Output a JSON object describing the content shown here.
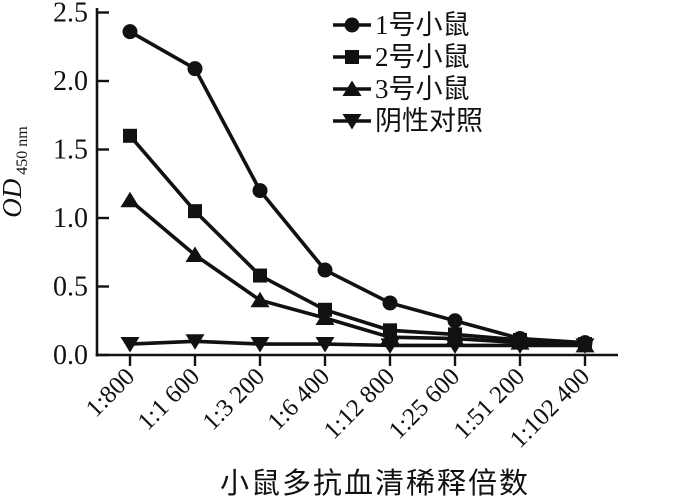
{
  "figure": {
    "background": "#ffffff",
    "line_color": "#111111"
  },
  "chart_data": {
    "type": "line",
    "title": "",
    "xlabel": "小鼠多抗血清稀释倍数",
    "ylabel": "OD",
    "ylabel_sub": "450 nm",
    "categories": [
      "1:800",
      "1:1 600",
      "1:3 200",
      "1:6 400",
      "1:12 800",
      "1:25 600",
      "1:51 200",
      "1:102 400"
    ],
    "series": [
      {
        "name": "1号小鼠",
        "marker": "circle",
        "values": [
          2.36,
          2.09,
          1.2,
          0.62,
          0.38,
          0.25,
          0.12,
          0.09
        ]
      },
      {
        "name": "2号小鼠",
        "marker": "square",
        "values": [
          1.6,
          1.05,
          0.58,
          0.33,
          0.18,
          0.15,
          0.11,
          0.08
        ]
      },
      {
        "name": "3号小鼠",
        "marker": "triangle-up",
        "values": [
          1.13,
          0.73,
          0.4,
          0.27,
          0.13,
          0.12,
          0.09,
          0.07
        ]
      },
      {
        "name": "阴性对照",
        "marker": "triangle-down",
        "values": [
          0.08,
          0.1,
          0.08,
          0.08,
          0.07,
          0.07,
          0.07,
          0.07
        ]
      }
    ],
    "yticks": [
      0.0,
      0.5,
      1.0,
      1.5,
      2.0,
      2.5
    ],
    "ylim": [
      0,
      2.5
    ],
    "grid": false,
    "legend_position": "top-right",
    "line_color": "#111111"
  }
}
